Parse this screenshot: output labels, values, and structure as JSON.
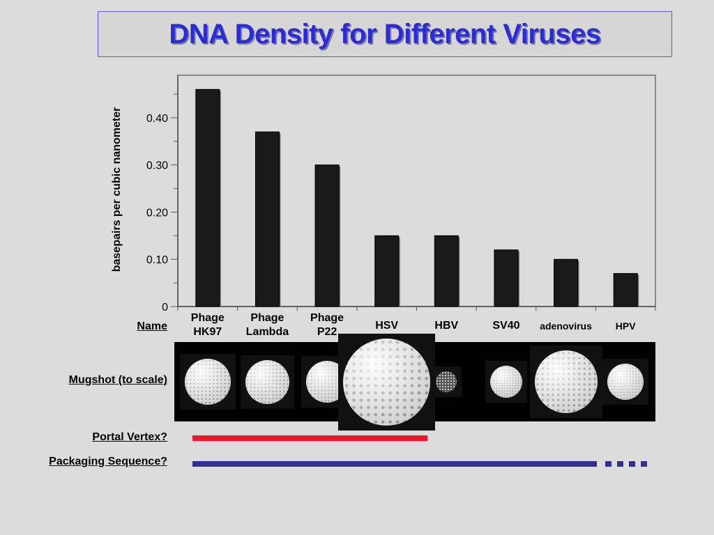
{
  "title": "DNA Density for Different Viruses",
  "row_labels": {
    "name": "Name",
    "mugshot": "Mugshot (to scale)",
    "portal": "Portal Vertex?",
    "packaging": "Packaging Sequence?"
  },
  "categories": [
    "Phage\nHK97",
    "Phage\nLambda",
    "Phage\nP22",
    "HSV",
    "HBV",
    "SV40",
    "adenovirus",
    "HPV"
  ],
  "colors": {
    "bar": "#1a1a1a",
    "portal": "#f0142c",
    "packaging": "#30308e",
    "title": "#2c2cd6"
  },
  "chart_data": {
    "type": "bar",
    "categories": [
      "Phage HK97",
      "Phage Lambda",
      "Phage P22",
      "HSV",
      "HBV",
      "SV40",
      "adenovirus",
      "HPV"
    ],
    "values": [
      0.46,
      0.37,
      0.3,
      0.15,
      0.15,
      0.12,
      0.1,
      0.07
    ],
    "title": "DNA Density for Different Viruses",
    "xlabel": "",
    "ylabel": "basepairs per cubic nanometer",
    "ylim": [
      0,
      0.49
    ],
    "yticks": [
      0,
      0.1,
      0.2,
      0.3,
      0.4
    ],
    "yticklabels": [
      "0",
      "0.10",
      "0.20",
      "0.30",
      "0.40"
    ],
    "grid": false
  },
  "portal_vertex": {
    "present_for": [
      "Phage HK97",
      "Phage Lambda",
      "Phage P22",
      "HSV"
    ]
  },
  "packaging_sequence": {
    "present_for": [
      "Phage HK97",
      "Phage Lambda",
      "Phage P22",
      "HSV",
      "HBV",
      "SV40",
      "adenovirus"
    ],
    "continues": true
  },
  "mugshots": [
    {
      "name": "Phage HK97",
      "diameter": 66
    },
    {
      "name": "Phage Lambda",
      "diameter": 63
    },
    {
      "name": "Phage P22",
      "diameter": 60
    },
    {
      "name": "HSV",
      "diameter": 125
    },
    {
      "name": "HBV",
      "diameter": 30
    },
    {
      "name": "SV40",
      "diameter": 46
    },
    {
      "name": "adenovirus",
      "diameter": 90
    },
    {
      "name": "HPV",
      "diameter": 52
    }
  ]
}
